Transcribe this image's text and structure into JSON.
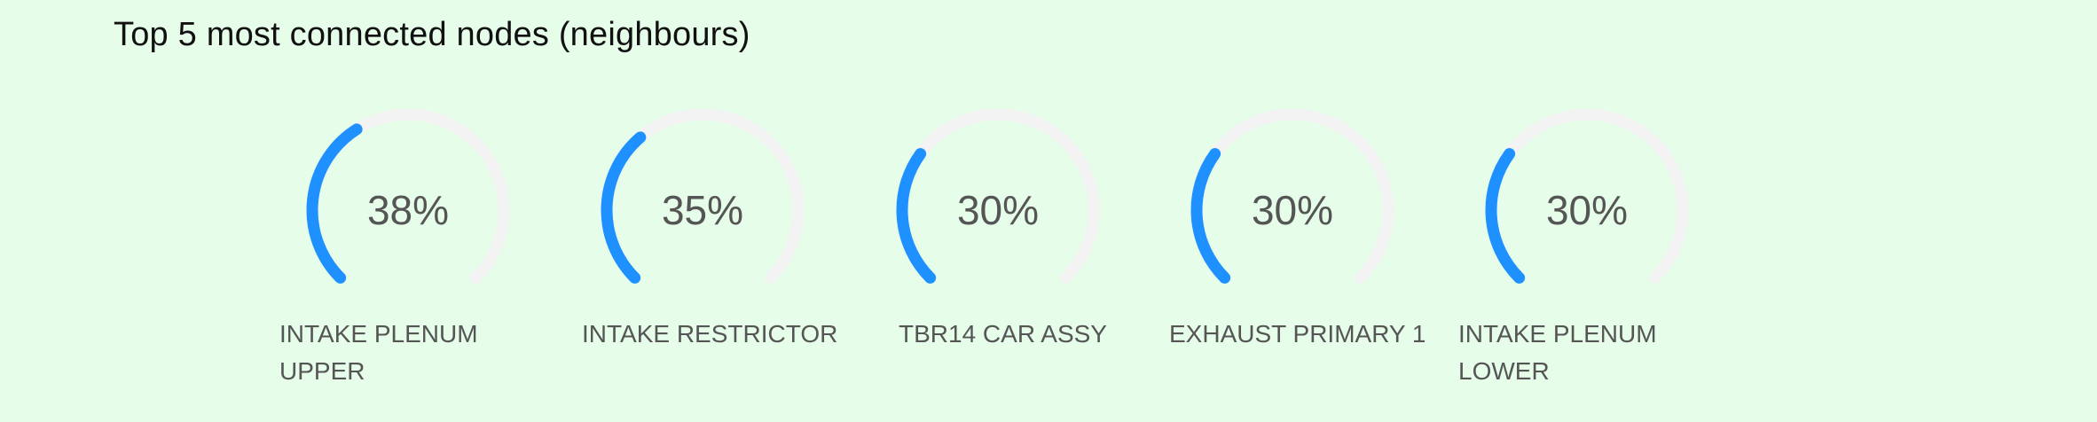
{
  "title": "Top 5 most connected nodes (neighbours)",
  "colors": {
    "background": "#e5fde9",
    "arc_fill": "#1e90ff",
    "arc_track": "#f3f3f3",
    "text": "#555555"
  },
  "chart_data": {
    "type": "gauge",
    "title": "Top 5 most connected nodes (neighbours)",
    "unit": "%",
    "max": 100,
    "items": [
      {
        "name": "INTAKE PLENUM UPPER",
        "value": 38,
        "display": "38%"
      },
      {
        "name": "INTAKE RESTRICTOR",
        "value": 35,
        "display": "35%"
      },
      {
        "name": "TBR14 CAR ASSY",
        "value": 30,
        "display": "30%"
      },
      {
        "name": "EXHAUST PRIMARY 1",
        "value": 30,
        "display": "30%"
      },
      {
        "name": "INTAKE PLENUM LOWER",
        "value": 30,
        "display": "30%"
      }
    ]
  }
}
